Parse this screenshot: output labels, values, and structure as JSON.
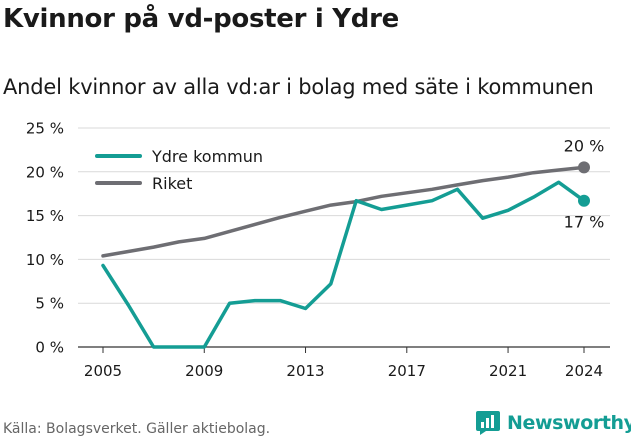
{
  "header": {
    "title": "Kvinnor på vd-poster i Ydre",
    "subtitle": "Andel kvinnor av alla vd:ar i bolag med säte i kommunen"
  },
  "footer": {
    "source": "Källa: Bolagsverket. Gäller aktiebolag.",
    "brand": "Newsworthy"
  },
  "colors": {
    "ydre": "#149d94",
    "riket": "#6e6e73",
    "grid": "#d9d9d9",
    "axis": "#333333",
    "brand": "#149d94"
  },
  "chart_data": {
    "type": "line",
    "x": [
      2005,
      2006,
      2007,
      2008,
      2009,
      2010,
      2011,
      2012,
      2013,
      2014,
      2015,
      2016,
      2017,
      2018,
      2019,
      2020,
      2021,
      2022,
      2023,
      2024
    ],
    "series": [
      {
        "name": "Ydre kommun",
        "color": "#149d94",
        "values": [
          9.3,
          4.8,
          0,
          0,
          0,
          5.0,
          5.3,
          5.3,
          4.4,
          7.2,
          16.7,
          15.7,
          16.2,
          16.7,
          18.0,
          14.7,
          15.6,
          17.1,
          18.8,
          16.7
        ],
        "end_label": "17 %"
      },
      {
        "name": "Riket",
        "color": "#6e6e73",
        "values": [
          10.4,
          10.9,
          11.4,
          12.0,
          12.4,
          13.2,
          14.0,
          14.8,
          15.5,
          16.2,
          16.6,
          17.2,
          17.6,
          18.0,
          18.5,
          19.0,
          19.4,
          19.9,
          20.2,
          20.5
        ],
        "end_label": "20 %"
      }
    ],
    "y_ticks": [
      0,
      5,
      10,
      15,
      20,
      25
    ],
    "y_tick_labels": [
      "0 %",
      "5 %",
      "10 %",
      "15 %",
      "20 %",
      "25 %"
    ],
    "x_ticks": [
      2005,
      2009,
      2013,
      2017,
      2021,
      2024
    ],
    "x_tick_labels": [
      "2005",
      "2009",
      "2013",
      "2017",
      "2021",
      "2024"
    ],
    "xlim": [
      2005,
      2024
    ],
    "ylim": [
      0,
      25
    ],
    "grid": true,
    "legend": "top-left"
  }
}
